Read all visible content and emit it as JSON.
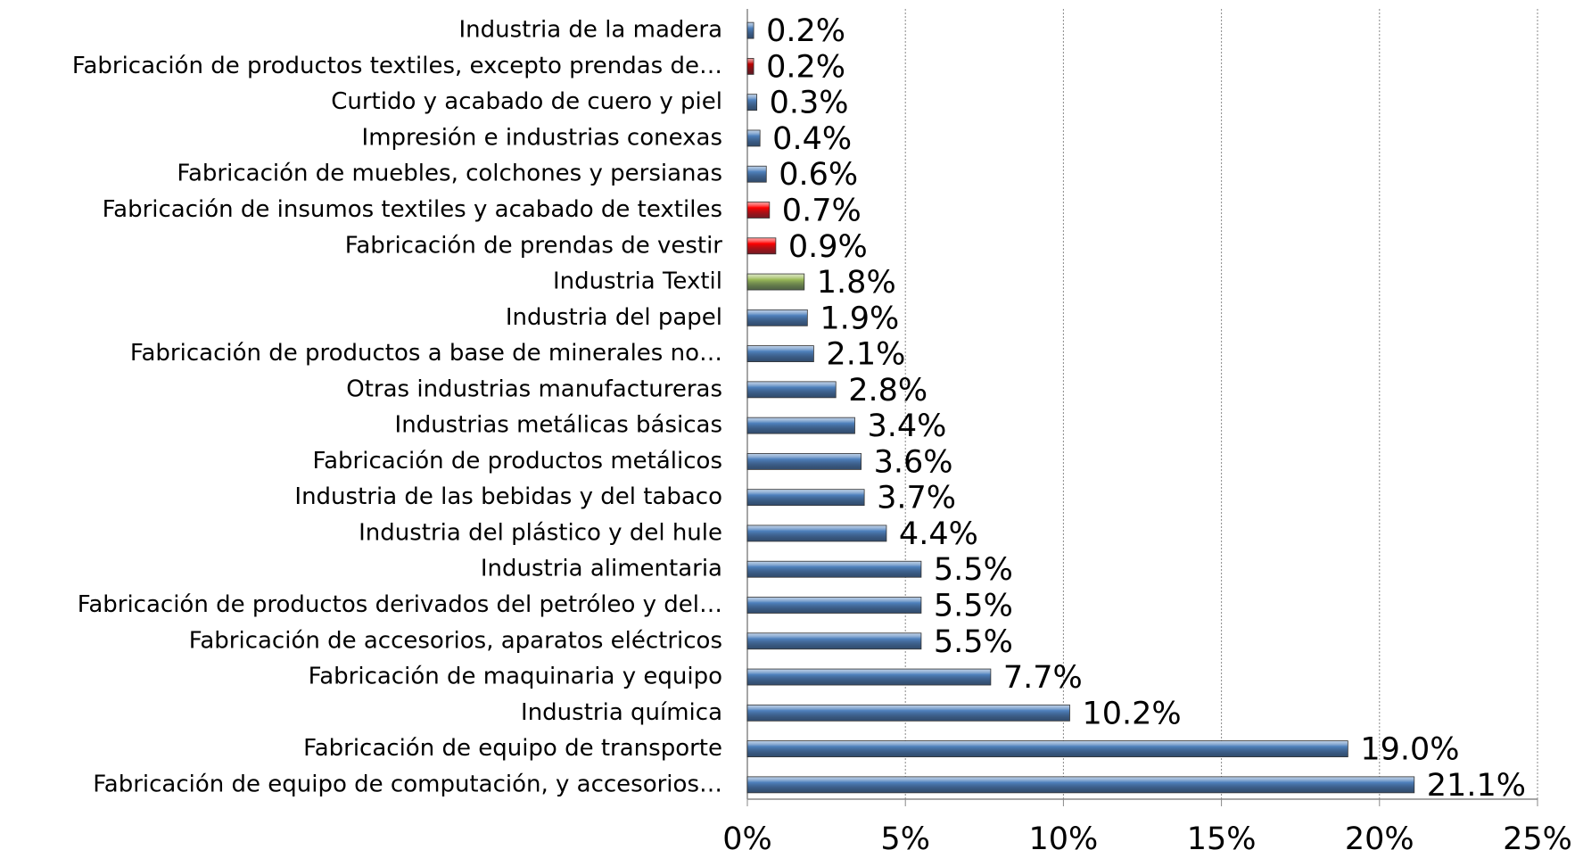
{
  "chart_data": {
    "type": "bar",
    "orientation": "horizontal",
    "categories": [
      "Industria de la madera",
      "Fabricación de productos textiles, excepto prendas de…",
      "Curtido y acabado de cuero y piel",
      "Impresión e industrias conexas",
      "Fabricación de muebles, colchones y persianas",
      "Fabricación de insumos textiles y acabado de textiles",
      "Fabricación de prendas de vestir",
      "Industria Textil",
      "Industria del papel",
      "Fabricación de productos a base de minerales no…",
      "Otras industrias manufactureras",
      "Industrias metálicas básicas",
      "Fabricación de productos metálicos",
      "Industria de las bebidas y del tabaco",
      "Industria del plástico y del hule",
      "Industria alimentaria",
      "Fabricación de productos derivados del petróleo y del…",
      "Fabricación de accesorios, aparatos eléctricos",
      "Fabricación de maquinaria y equipo",
      "Industria química",
      "Fabricación de equipo de transporte",
      "Fabricación de equipo de computación, y accesorios…"
    ],
    "values": [
      0.2,
      0.2,
      0.3,
      0.4,
      0.6,
      0.7,
      0.9,
      1.8,
      1.9,
      2.1,
      2.8,
      3.4,
      3.6,
      3.7,
      4.4,
      5.5,
      5.5,
      5.5,
      7.7,
      10.2,
      19.0,
      21.1
    ],
    "value_labels": [
      "0.2%",
      "0.2%",
      "0.3%",
      "0.4%",
      "0.6%",
      "0.7%",
      "0.9%",
      "1.8%",
      "1.9%",
      "2.1%",
      "2.8%",
      "3.4%",
      "3.6%",
      "3.7%",
      "4.4%",
      "5.5%",
      "5.5%",
      "5.5%",
      "7.7%",
      "10.2%",
      "19.0%",
      "21.1%"
    ],
    "colors": [
      "#4f81bd",
      "#c00000",
      "#4f81bd",
      "#4f81bd",
      "#4f81bd",
      "#ff0000",
      "#ff0000",
      "#9bbb59",
      "#4f81bd",
      "#4f81bd",
      "#4f81bd",
      "#4f81bd",
      "#4f81bd",
      "#4f81bd",
      "#4f81bd",
      "#4f81bd",
      "#4f81bd",
      "#4f81bd",
      "#4f81bd",
      "#4f81bd",
      "#4f81bd",
      "#4f81bd"
    ],
    "xlim": [
      0,
      25
    ],
    "xticks": [
      {
        "value": 0,
        "label": "0%"
      },
      {
        "value": 5,
        "label": "5%"
      },
      {
        "value": 10,
        "label": "10%"
      },
      {
        "value": 15,
        "label": "15%"
      },
      {
        "value": 20,
        "label": "20%"
      },
      {
        "value": 25,
        "label": "25%"
      }
    ],
    "grid": true
  }
}
